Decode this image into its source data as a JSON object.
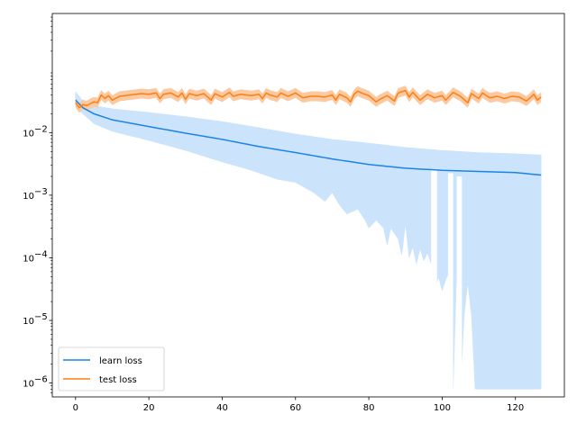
{
  "chart_data": {
    "type": "line",
    "title": "",
    "xlabel": "",
    "ylabel": "",
    "xlim": [
      -6.35,
      133.35
    ],
    "ylim": [
      6e-07,
      0.8
    ],
    "yscale": "log",
    "x_ticks": [
      0,
      20,
      40,
      60,
      80,
      100,
      120
    ],
    "x_tick_labels": [
      "0",
      "20",
      "40",
      "60",
      "80",
      "100",
      "120"
    ],
    "y_ticks": [
      1e-06,
      1e-05,
      0.0001,
      0.001,
      0.01
    ],
    "y_tick_labels": [
      "10",
      "10",
      "10",
      "10",
      "10"
    ],
    "y_tick_exponents": [
      "−6",
      "−5",
      "−4",
      "−3",
      "−2"
    ],
    "grid": false,
    "legend_position": "lower-left",
    "x_points": 128,
    "series": [
      {
        "name": "learn loss",
        "color": "#1a84e6",
        "band_color": "#cce4fb",
        "mean_anchors": [
          [
            0,
            0.033
          ],
          [
            2,
            0.025
          ],
          [
            5,
            0.02
          ],
          [
            10,
            0.016
          ],
          [
            20,
            0.0125
          ],
          [
            30,
            0.0098
          ],
          [
            40,
            0.0078
          ],
          [
            50,
            0.006
          ],
          [
            60,
            0.0048
          ],
          [
            70,
            0.0038
          ],
          [
            80,
            0.0031
          ],
          [
            90,
            0.0027
          ],
          [
            100,
            0.0025
          ],
          [
            110,
            0.0024
          ],
          [
            120,
            0.0023
          ],
          [
            127,
            0.0021
          ]
        ],
        "upper_anchors": [
          [
            0,
            0.045
          ],
          [
            2,
            0.032
          ],
          [
            5,
            0.027
          ],
          [
            10,
            0.024
          ],
          [
            20,
            0.021
          ],
          [
            30,
            0.018
          ],
          [
            40,
            0.015
          ],
          [
            50,
            0.012
          ],
          [
            60,
            0.0095
          ],
          [
            70,
            0.0078
          ],
          [
            80,
            0.0068
          ],
          [
            90,
            0.0058
          ],
          [
            100,
            0.0052
          ],
          [
            110,
            0.0048
          ],
          [
            120,
            0.0046
          ],
          [
            127,
            0.0044
          ]
        ],
        "lower_anchors": [
          [
            0,
            0.026
          ],
          [
            2,
            0.02
          ],
          [
            5,
            0.014
          ],
          [
            10,
            0.0105
          ],
          [
            20,
            0.0075
          ],
          [
            30,
            0.0052
          ],
          [
            40,
            0.0034
          ],
          [
            48,
            0.0025
          ],
          [
            55,
            0.0018
          ],
          [
            60,
            0.0016
          ],
          [
            65,
            0.0011
          ],
          [
            68,
            0.0008
          ],
          [
            70,
            0.0011
          ],
          [
            72,
            0.0007
          ],
          [
            74,
            0.0005
          ],
          [
            77,
            0.0006
          ],
          [
            79,
            0.0004
          ],
          [
            80,
            0.0003
          ],
          [
            82,
            0.0004
          ],
          [
            84,
            0.0003
          ],
          [
            85,
            0.00016
          ],
          [
            86,
            0.0003
          ],
          [
            88,
            0.0002
          ],
          [
            89,
            0.00011
          ],
          [
            90,
            0.00035
          ],
          [
            91,
            0.0001
          ],
          [
            92,
            0.00015
          ],
          [
            93,
            8e-05
          ],
          [
            94,
            0.00014
          ],
          [
            95,
            9e-05
          ],
          [
            96,
            0.00012
          ],
          [
            97,
            8e-05
          ],
          [
            98,
            3e-05
          ],
          [
            99,
            5e-05
          ],
          [
            100,
            3e-05
          ],
          [
            101,
            4.5e-05
          ],
          [
            102,
            6e-05
          ],
          [
            103,
            8e-07
          ],
          [
            104,
            7e-05
          ],
          [
            105,
            8e-07
          ],
          [
            106,
            1.2e-05
          ],
          [
            107,
            4e-05
          ],
          [
            108,
            1.2e-05
          ],
          [
            109,
            8e-07
          ],
          [
            127,
            8e-07
          ]
        ],
        "gaps_x": [
          [
            97,
            98.6
          ],
          [
            101.6,
            103
          ],
          [
            104,
            105.4
          ]
        ]
      },
      {
        "name": "test loss",
        "color": "#ff7f0e",
        "band_color": "#fbc9a2",
        "mean_anchors": [
          [
            0,
            0.03
          ],
          [
            1,
            0.025
          ],
          [
            2,
            0.028
          ],
          [
            3,
            0.027
          ],
          [
            5,
            0.031
          ],
          [
            6,
            0.03
          ],
          [
            7,
            0.04
          ],
          [
            8,
            0.035
          ],
          [
            9,
            0.039
          ],
          [
            10,
            0.033
          ],
          [
            12,
            0.038
          ],
          [
            15,
            0.04
          ],
          [
            18,
            0.042
          ],
          [
            20,
            0.041
          ],
          [
            22,
            0.043
          ],
          [
            23,
            0.035
          ],
          [
            24,
            0.041
          ],
          [
            26,
            0.043
          ],
          [
            28,
            0.037
          ],
          [
            29,
            0.043
          ],
          [
            30,
            0.034
          ],
          [
            31,
            0.042
          ],
          [
            33,
            0.039
          ],
          [
            35,
            0.042
          ],
          [
            37,
            0.033
          ],
          [
            38,
            0.042
          ],
          [
            40,
            0.037
          ],
          [
            42,
            0.044
          ],
          [
            43,
            0.038
          ],
          [
            45,
            0.041
          ],
          [
            48,
            0.039
          ],
          [
            50,
            0.041
          ],
          [
            51,
            0.035
          ],
          [
            52,
            0.043
          ],
          [
            53,
            0.04
          ],
          [
            55,
            0.037
          ],
          [
            56,
            0.043
          ],
          [
            58,
            0.038
          ],
          [
            60,
            0.043
          ],
          [
            62,
            0.036
          ],
          [
            64,
            0.038
          ],
          [
            66,
            0.038
          ],
          [
            68,
            0.037
          ],
          [
            70,
            0.04
          ],
          [
            71,
            0.033
          ],
          [
            72,
            0.041
          ],
          [
            74,
            0.036
          ],
          [
            75,
            0.031
          ],
          [
            76,
            0.041
          ],
          [
            77,
            0.046
          ],
          [
            78,
            0.043
          ],
          [
            80,
            0.039
          ],
          [
            82,
            0.031
          ],
          [
            83,
            0.034
          ],
          [
            85,
            0.039
          ],
          [
            87,
            0.032
          ],
          [
            88,
            0.043
          ],
          [
            90,
            0.047
          ],
          [
            91,
            0.037
          ],
          [
            92,
            0.044
          ],
          [
            94,
            0.033
          ],
          [
            96,
            0.041
          ],
          [
            98,
            0.036
          ],
          [
            100,
            0.039
          ],
          [
            101,
            0.033
          ],
          [
            103,
            0.044
          ],
          [
            105,
            0.038
          ],
          [
            107,
            0.03
          ],
          [
            108,
            0.042
          ],
          [
            110,
            0.035
          ],
          [
            111,
            0.043
          ],
          [
            113,
            0.036
          ],
          [
            115,
            0.038
          ],
          [
            117,
            0.035
          ],
          [
            119,
            0.038
          ],
          [
            121,
            0.037
          ],
          [
            123,
            0.032
          ],
          [
            124,
            0.036
          ],
          [
            125,
            0.041
          ],
          [
            126,
            0.033
          ],
          [
            127,
            0.037
          ]
        ]
      }
    ]
  }
}
